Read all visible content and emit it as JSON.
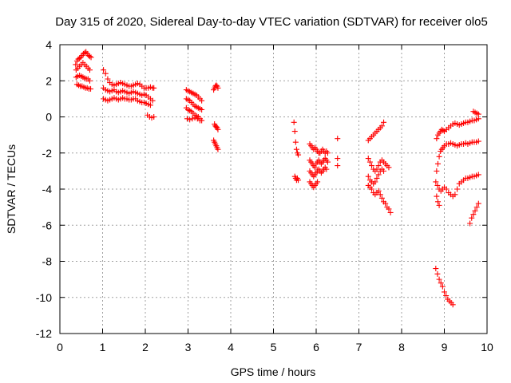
{
  "chart_data": {
    "type": "scatter",
    "title": "Day 315 of 2020, Sidereal Day-to-day VTEC variation (SDTVAR) for receiver olo5",
    "xlabel": "GPS time / hours",
    "ylabel": "SDTVAR / TECUs",
    "xlim": [
      0,
      10
    ],
    "ylim": [
      -12,
      4
    ],
    "xticks": [
      0,
      1,
      2,
      3,
      4,
      5,
      6,
      7,
      8,
      9,
      10
    ],
    "yticks": [
      -12,
      -10,
      -8,
      -6,
      -4,
      -2,
      0,
      2,
      4
    ],
    "grid": true,
    "marker": "+",
    "color": "#ff0000",
    "series": [
      {
        "name": "SDTVAR",
        "segments": [
          {
            "x": [
              0.37,
              0.4,
              0.43,
              0.46,
              0.49,
              0.52,
              0.55,
              0.58,
              0.61,
              0.64,
              0.67,
              0.7,
              0.73
            ],
            "y": [
              2.9,
              3.1,
              3.2,
              3.25,
              3.3,
              3.4,
              3.5,
              3.55,
              3.6,
              3.5,
              3.4,
              3.35,
              3.3
            ]
          },
          {
            "x": [
              0.38,
              0.42,
              0.46,
              0.5,
              0.54,
              0.58,
              0.62,
              0.66,
              0.7
            ],
            "y": [
              2.6,
              2.7,
              2.8,
              2.9,
              3.0,
              2.9,
              2.8,
              2.7,
              2.6
            ]
          },
          {
            "x": [
              0.38,
              0.42,
              0.46,
              0.5,
              0.54,
              0.58,
              0.62,
              0.66,
              0.7
            ],
            "y": [
              2.2,
              2.25,
              2.3,
              2.25,
              2.2,
              2.15,
              2.1,
              2.1,
              2.0
            ]
          },
          {
            "x": [
              0.4,
              0.44,
              0.48,
              0.52,
              0.56,
              0.6,
              0.64,
              0.68,
              0.72
            ],
            "y": [
              1.8,
              1.75,
              1.7,
              1.7,
              1.65,
              1.6,
              1.6,
              1.55,
              1.55
            ]
          },
          {
            "x": [
              1.02,
              1.07,
              1.12,
              1.17,
              1.22,
              1.27,
              1.32,
              1.37,
              1.42,
              1.47,
              1.52,
              1.57,
              1.62,
              1.67,
              1.72,
              1.77,
              1.82,
              1.87,
              1.92,
              1.97,
              2.02,
              2.07,
              2.12,
              2.17,
              2.2
            ],
            "y": [
              2.6,
              2.4,
              2.1,
              1.9,
              1.8,
              1.75,
              1.8,
              1.85,
              1.9,
              1.85,
              1.8,
              1.75,
              1.7,
              1.7,
              1.75,
              1.8,
              1.85,
              1.8,
              1.7,
              1.6,
              1.6,
              1.6,
              1.65,
              1.6,
              1.6
            ]
          },
          {
            "x": [
              1.02,
              1.07,
              1.12,
              1.17,
              1.22,
              1.27,
              1.32,
              1.37,
              1.42,
              1.47,
              1.52,
              1.57,
              1.62,
              1.67,
              1.72,
              1.77,
              1.82,
              1.87,
              1.92,
              1.97,
              2.02,
              2.07,
              2.12,
              2.17
            ],
            "y": [
              1.6,
              1.5,
              1.45,
              1.4,
              1.45,
              1.5,
              1.4,
              1.35,
              1.4,
              1.45,
              1.4,
              1.35,
              1.3,
              1.35,
              1.4,
              1.35,
              1.3,
              1.25,
              1.2,
              1.25,
              1.2,
              1.1,
              1.0,
              0.9
            ]
          },
          {
            "x": [
              1.02,
              1.07,
              1.12,
              1.17,
              1.22,
              1.27,
              1.32,
              1.37,
              1.42,
              1.47,
              1.52,
              1.57,
              1.62,
              1.67,
              1.72,
              1.77,
              1.82,
              1.87,
              1.92,
              1.97,
              2.02,
              2.07,
              2.12
            ],
            "y": [
              1.0,
              0.95,
              0.9,
              0.95,
              1.0,
              1.05,
              1.0,
              0.95,
              1.0,
              1.05,
              1.0,
              1.0,
              0.95,
              0.95,
              1.0,
              1.0,
              0.9,
              0.85,
              0.8,
              0.8,
              0.75,
              0.7,
              0.65
            ]
          },
          {
            "x": [
              2.05,
              2.1,
              2.15,
              2.2
            ],
            "y": [
              0.1,
              0.0,
              -0.05,
              0.0
            ]
          },
          {
            "x": [
              2.96,
              3.0,
              3.04,
              3.08,
              3.12,
              3.16,
              3.2,
              3.24,
              3.28,
              3.32
            ],
            "y": [
              1.5,
              1.45,
              1.4,
              1.35,
              1.3,
              1.25,
              1.2,
              1.1,
              1.0,
              0.9
            ]
          },
          {
            "x": [
              2.96,
              3.0,
              3.04,
              3.08,
              3.12,
              3.16,
              3.2,
              3.24,
              3.28,
              3.32
            ],
            "y": [
              1.0,
              0.95,
              0.9,
              0.8,
              0.7,
              0.6,
              0.55,
              0.5,
              0.45,
              0.4
            ]
          },
          {
            "x": [
              2.96,
              3.0,
              3.04,
              3.08,
              3.12,
              3.16,
              3.2,
              3.24,
              3.28,
              3.32
            ],
            "y": [
              0.5,
              0.4,
              0.35,
              0.3,
              0.2,
              0.1,
              0.05,
              0.0,
              -0.1,
              -0.2
            ]
          },
          {
            "x": [
              2.98,
              3.04,
              3.1,
              3.16,
              3.22,
              3.28
            ],
            "y": [
              -0.1,
              -0.15,
              -0.1,
              -0.05,
              -0.1,
              -0.2
            ]
          },
          {
            "x": [
              3.6,
              3.62,
              3.64,
              3.66,
              3.68,
              3.7
            ],
            "y": [
              1.5,
              1.6,
              1.7,
              1.75,
              1.7,
              1.6
            ]
          },
          {
            "x": [
              3.62,
              3.64,
              3.66,
              3.68,
              3.7
            ],
            "y": [
              -0.4,
              -0.5,
              -0.55,
              -0.6,
              -0.7
            ]
          },
          {
            "x": [
              3.6,
              3.62,
              3.64,
              3.66,
              3.68,
              3.7
            ],
            "y": [
              -1.3,
              -1.4,
              -1.5,
              -1.6,
              -1.7,
              -1.8
            ]
          },
          {
            "x": [
              5.48,
              5.5,
              5.52,
              5.54,
              5.56,
              5.58
            ],
            "y": [
              -0.3,
              -0.8,
              -1.4,
              -1.8,
              -2.0,
              -2.1
            ]
          },
          {
            "x": [
              5.5,
              5.52,
              5.54,
              5.56,
              5.58
            ],
            "y": [
              -3.3,
              -3.4,
              -3.5,
              -3.4,
              -3.5
            ]
          },
          {
            "x": [
              5.85,
              5.88,
              5.91,
              5.94,
              5.97,
              6.0,
              6.03,
              6.06,
              6.09,
              6.12,
              6.15,
              6.18,
              6.21,
              6.24,
              6.27
            ],
            "y": [
              -1.5,
              -1.6,
              -1.7,
              -1.8,
              -1.7,
              -1.8,
              -1.9,
              -2.0,
              -2.0,
              -1.9,
              -1.8,
              -1.9,
              -2.0,
              -1.9,
              -2.0
            ]
          },
          {
            "x": [
              5.85,
              5.88,
              5.91,
              5.94,
              5.97,
              6.0,
              6.03,
              6.06,
              6.09,
              6.12,
              6.15,
              6.18,
              6.21,
              6.24,
              6.27
            ],
            "y": [
              -2.4,
              -2.5,
              -2.6,
              -2.7,
              -2.8,
              -2.6,
              -2.5,
              -2.4,
              -2.5,
              -2.6,
              -2.5,
              -2.4,
              -2.3,
              -2.4,
              -2.5
            ]
          },
          {
            "x": [
              5.85,
              5.88,
              5.91,
              5.94,
              5.97,
              6.0,
              6.03,
              6.06,
              6.09,
              6.12,
              6.15,
              6.18,
              6.21,
              6.24
            ],
            "y": [
              -3.0,
              -3.1,
              -3.2,
              -3.3,
              -3.2,
              -3.1,
              -3.0,
              -2.9,
              -3.0,
              -3.1,
              -3.0,
              -2.9,
              -2.8,
              -2.9
            ]
          },
          {
            "x": [
              5.85,
              5.88,
              5.91,
              5.94,
              5.97,
              6.0,
              6.03
            ],
            "y": [
              -3.6,
              -3.7,
              -3.8,
              -3.9,
              -3.8,
              -3.7,
              -3.6
            ]
          },
          {
            "x": [
              6.5,
              6.5,
              6.5
            ],
            "y": [
              -1.2,
              -2.3,
              -2.7
            ]
          },
          {
            "x": [
              7.22,
              7.26,
              7.3,
              7.34,
              7.38,
              7.42,
              7.46,
              7.5,
              7.54,
              7.58
            ],
            "y": [
              -1.3,
              -1.2,
              -1.1,
              -1.0,
              -0.9,
              -0.8,
              -0.7,
              -0.6,
              -0.5,
              -0.3
            ]
          },
          {
            "x": [
              7.22,
              7.26,
              7.3,
              7.34,
              7.38,
              7.42,
              7.46,
              7.5,
              7.54,
              7.58,
              7.62,
              7.66,
              7.7
            ],
            "y": [
              -2.3,
              -2.5,
              -2.7,
              -2.9,
              -3.0,
              -2.9,
              -2.7,
              -2.5,
              -2.4,
              -2.5,
              -2.6,
              -2.7,
              -2.8
            ]
          },
          {
            "x": [
              7.22,
              7.26,
              7.3,
              7.34,
              7.38,
              7.42,
              7.46,
              7.5,
              7.54,
              7.58
            ],
            "y": [
              -3.3,
              -3.5,
              -3.6,
              -3.7,
              -3.6,
              -3.4,
              -3.2,
              -3.0,
              -2.9,
              -3.0
            ]
          },
          {
            "x": [
              7.22,
              7.26,
              7.3,
              7.34,
              7.38,
              7.42,
              7.46,
              7.5,
              7.54,
              7.58,
              7.62,
              7.66,
              7.7,
              7.74
            ],
            "y": [
              -3.8,
              -3.9,
              -4.0,
              -4.2,
              -4.3,
              -4.2,
              -4.1,
              -4.3,
              -4.5,
              -4.7,
              -4.8,
              -5.0,
              -5.1,
              -5.3
            ]
          },
          {
            "x": [
              8.8,
              8.84,
              8.88,
              8.92,
              8.96,
              9.0,
              9.04,
              9.08,
              9.12,
              9.16,
              9.2
            ],
            "y": [
              -8.4,
              -8.7,
              -9.0,
              -9.2,
              -9.4,
              -9.7,
              -9.9,
              -10.1,
              -10.2,
              -10.3,
              -10.4
            ]
          },
          {
            "x": [
              8.82,
              8.85,
              8.88,
              8.91,
              8.94,
              8.97,
              9.0,
              9.05,
              9.1,
              9.15,
              9.2,
              9.25,
              9.3,
              9.35,
              9.4,
              9.45,
              9.5,
              9.55,
              9.6,
              9.65,
              9.7,
              9.75,
              9.8
            ],
            "y": [
              -1.2,
              -1.0,
              -0.9,
              -0.8,
              -0.7,
              -0.75,
              -0.8,
              -0.7,
              -0.6,
              -0.5,
              -0.4,
              -0.35,
              -0.4,
              -0.45,
              -0.4,
              -0.35,
              -0.3,
              -0.3,
              -0.25,
              -0.2,
              -0.2,
              -0.15,
              -0.1
            ]
          },
          {
            "x": [
              9.68,
              9.72,
              9.76,
              9.8
            ],
            "y": [
              0.3,
              0.25,
              0.2,
              0.15
            ]
          },
          {
            "x": [
              8.82,
              8.85,
              8.88,
              8.91,
              8.94,
              8.97,
              9.0,
              9.05,
              9.1,
              9.15,
              9.2,
              9.25,
              9.3,
              9.35,
              9.4,
              9.45,
              9.5,
              9.55,
              9.6,
              9.65,
              9.7,
              9.75,
              9.8
            ],
            "y": [
              -3.0,
              -2.6,
              -2.2,
              -1.9,
              -1.8,
              -1.7,
              -1.6,
              -1.5,
              -1.5,
              -1.45,
              -1.5,
              -1.55,
              -1.6,
              -1.55,
              -1.5,
              -1.5,
              -1.45,
              -1.5,
              -1.45,
              -1.4,
              -1.4,
              -1.4,
              -1.35
            ]
          },
          {
            "x": [
              8.8,
              8.84,
              8.88,
              8.92,
              8.96,
              9.0,
              9.05,
              9.1,
              9.15,
              9.2,
              9.25,
              9.3,
              9.35,
              9.4,
              9.45,
              9.5,
              9.55,
              9.6,
              9.65,
              9.7,
              9.75,
              9.8
            ],
            "y": [
              -3.6,
              -3.8,
              -4.0,
              -4.1,
              -4.0,
              -3.9,
              -4.0,
              -4.2,
              -4.3,
              -4.4,
              -4.3,
              -4.0,
              -3.7,
              -3.6,
              -3.5,
              -3.4,
              -3.4,
              -3.35,
              -3.3,
              -3.3,
              -3.25,
              -3.2
            ]
          },
          {
            "x": [
              8.82,
              8.85,
              8.88
            ],
            "y": [
              -4.4,
              -4.7,
              -4.9
            ]
          },
          {
            "x": [
              9.6,
              9.64,
              9.68,
              9.72,
              9.76,
              9.8
            ],
            "y": [
              -5.9,
              -5.6,
              -5.4,
              -5.2,
              -5.0,
              -4.8
            ]
          }
        ]
      }
    ]
  }
}
